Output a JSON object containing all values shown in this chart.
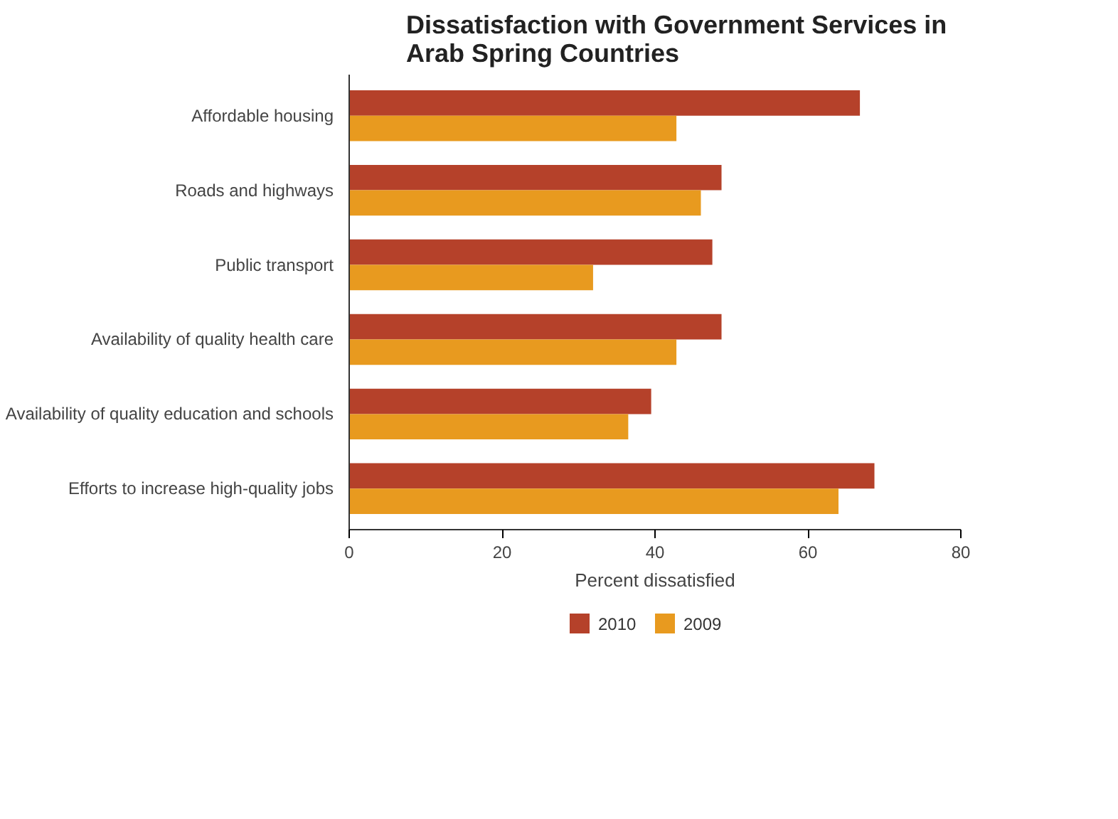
{
  "chart_data": {
    "type": "bar",
    "orientation": "horizontal",
    "title": "Dissatisfaction with Government Services in Arab Spring Countries",
    "xlabel": "Percent dissatisfied",
    "categories": [
      "Affordable housing",
      "Roads and highways",
      "Public transport",
      "Availability of quality health care",
      "Availability of quality education and schools",
      "Efforts to increase high-quality jobs"
    ],
    "series": [
      {
        "name": "2010",
        "color": "#b5412a",
        "values": [
          66.8,
          48.7,
          47.5,
          48.7,
          39.5,
          68.7
        ]
      },
      {
        "name": "2009",
        "color": "#e89a1f",
        "values": [
          42.8,
          46.0,
          31.9,
          42.8,
          36.5,
          64.0
        ]
      }
    ],
    "xlim": [
      0,
      80
    ],
    "xticks": [
      0,
      20,
      40,
      60,
      80
    ],
    "grid": false,
    "legend": "bottom"
  }
}
